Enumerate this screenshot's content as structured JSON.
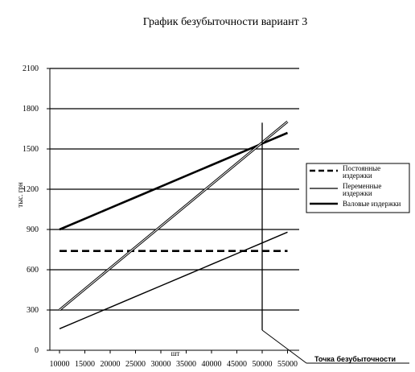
{
  "chart_data": {
    "type": "line",
    "title": "График безубыточности вариант 3",
    "xlabel": "шт",
    "ylabel": "тыс. грн",
    "x": [
      10000,
      15000,
      20000,
      25000,
      30000,
      35000,
      40000,
      45000,
      50000,
      55000
    ],
    "x_tick_labels": [
      "10000",
      "15000",
      "20000",
      "25000",
      "30000",
      "35000",
      "40000",
      "45000",
      "50000",
      "55000"
    ],
    "y_tick_labels": [
      "0",
      "300",
      "600",
      "900",
      "1200",
      "1500",
      "1800",
      "2100"
    ],
    "ylim": [
      0,
      2100
    ],
    "grid": "horizontal",
    "legend_position": "right",
    "series": [
      {
        "name": "Постоянные издержки",
        "style": "dashed",
        "color": "#000000",
        "values": [
          740,
          740,
          740,
          740,
          740,
          740,
          740,
          740,
          740,
          740
        ]
      },
      {
        "name": "Переменные издержки",
        "style": "thin",
        "color": "#000000",
        "values": [
          160,
          240,
          320,
          400,
          480,
          560,
          640,
          720,
          800,
          880
        ]
      },
      {
        "name": "Валовые издержки",
        "style": "thick",
        "color": "#000000",
        "values": [
          900,
          980,
          1060,
          1140,
          1220,
          1300,
          1380,
          1460,
          1540,
          1620
        ]
      },
      {
        "name": "",
        "style": "double",
        "color": "#000000",
        "values": [
          300,
          456,
          612,
          768,
          924,
          1080,
          1236,
          1392,
          1548,
          1704
        ]
      }
    ],
    "breakeven": {
      "label": "Точка безубыточности",
      "x": 50000,
      "y": 1540
    }
  }
}
